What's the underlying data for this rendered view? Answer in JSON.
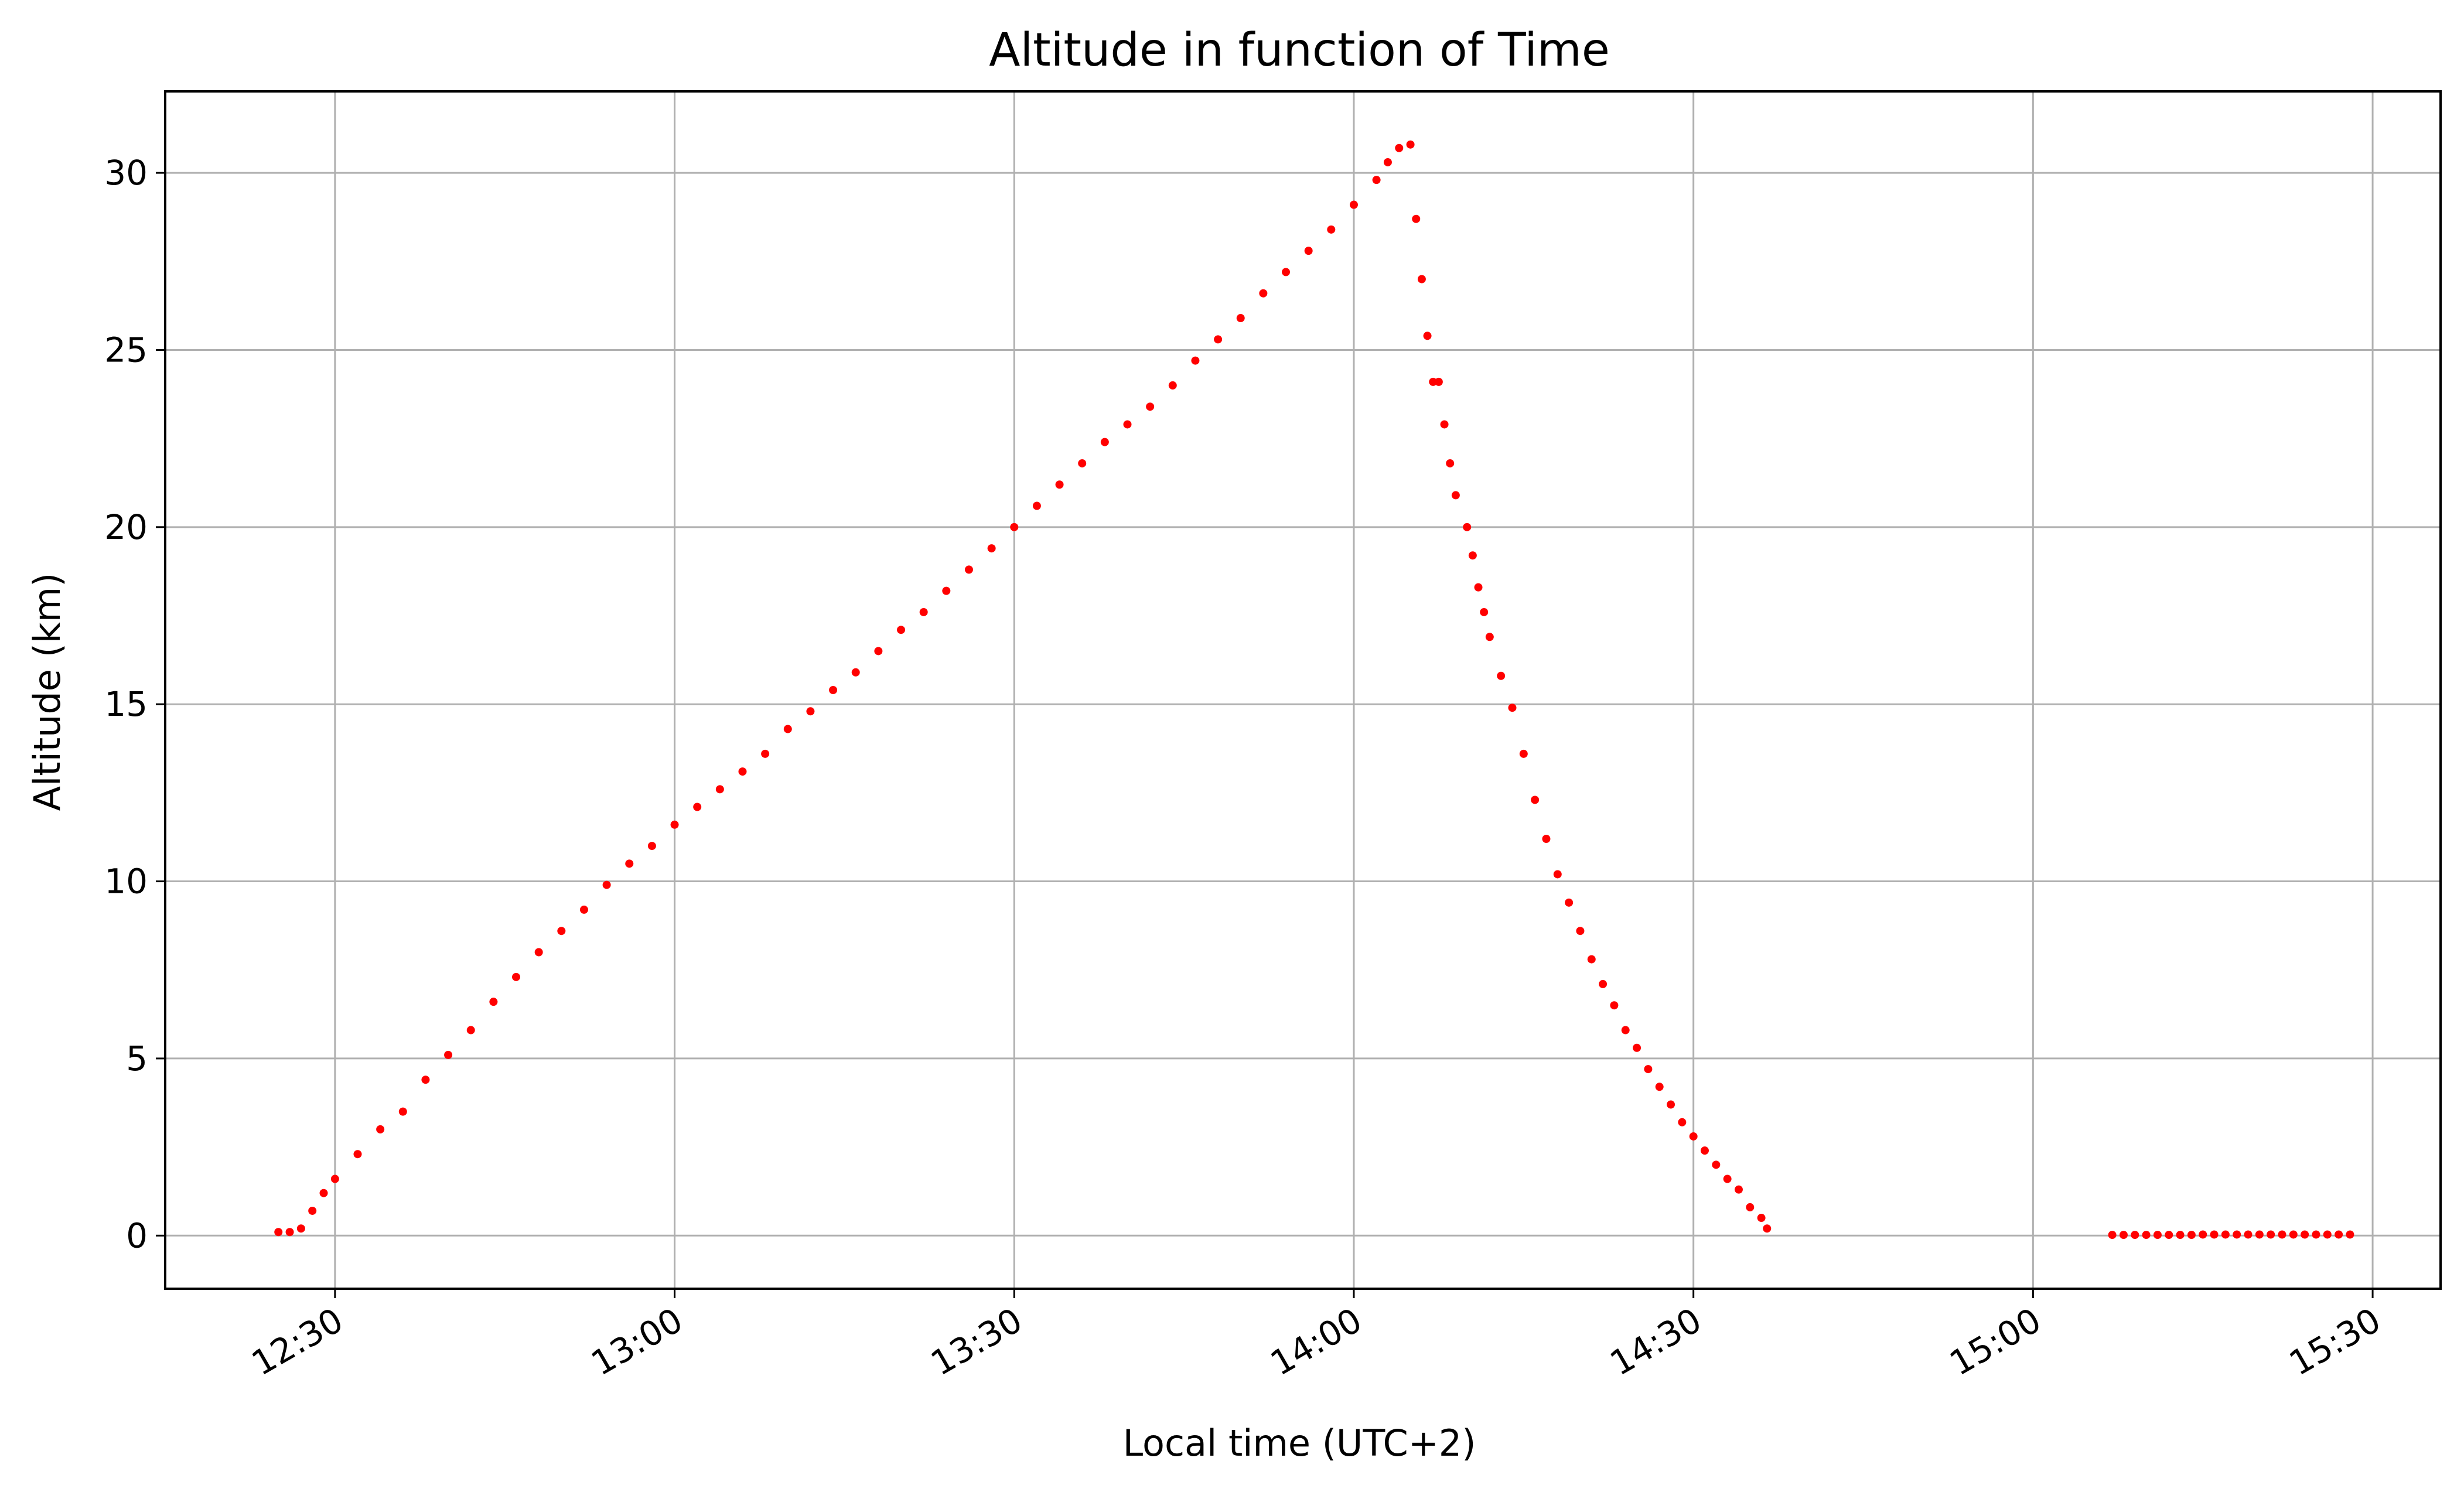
{
  "chart_data": {
    "type": "scatter",
    "title": "Altitude in function of Time",
    "xlabel": "Local time (UTC+2)",
    "ylabel": "Altitude (km)",
    "x_unit": "HH:MM local time",
    "xlim": [
      "12:15",
      "15:36"
    ],
    "ylim": [
      -1.5,
      32.3
    ],
    "x_ticks": [
      "12:30",
      "13:00",
      "13:30",
      "14:00",
      "14:30",
      "15:00",
      "15:30"
    ],
    "y_ticks": [
      0,
      5,
      10,
      15,
      20,
      25,
      30
    ],
    "grid": true,
    "legend": "none",
    "marker_color": "#ff0000",
    "series": [
      {
        "points": [
          [
            "12:25",
            0.1
          ],
          [
            "12:26",
            0.1
          ],
          [
            "12:27",
            0.2
          ],
          [
            "12:28",
            0.7
          ],
          [
            "12:29",
            1.2
          ],
          [
            "12:30",
            1.6
          ],
          [
            "12:32",
            2.3
          ],
          [
            "12:34",
            3.0
          ],
          [
            "12:36",
            3.5
          ],
          [
            "12:38",
            4.4
          ],
          [
            "12:40",
            5.1
          ],
          [
            "12:42",
            5.8
          ],
          [
            "12:44",
            6.6
          ],
          [
            "12:46",
            7.3
          ],
          [
            "12:48",
            8.0
          ],
          [
            "12:50",
            8.6
          ],
          [
            "12:52",
            9.2
          ],
          [
            "12:54",
            9.9
          ],
          [
            "12:56",
            10.5
          ],
          [
            "12:58",
            11.0
          ],
          [
            "13:00",
            11.6
          ],
          [
            "13:02",
            12.1
          ],
          [
            "13:04",
            12.6
          ],
          [
            "13:06",
            13.1
          ],
          [
            "13:08",
            13.6
          ],
          [
            "13:10",
            14.3
          ],
          [
            "13:12",
            14.8
          ],
          [
            "13:14",
            15.4
          ],
          [
            "13:16",
            15.9
          ],
          [
            "13:18",
            16.5
          ],
          [
            "13:20",
            17.1
          ],
          [
            "13:22",
            17.6
          ],
          [
            "13:24",
            18.2
          ],
          [
            "13:26",
            18.8
          ],
          [
            "13:28",
            19.4
          ],
          [
            "13:30",
            20.0
          ],
          [
            "13:32",
            20.6
          ],
          [
            "13:34",
            21.2
          ],
          [
            "13:36",
            21.8
          ],
          [
            "13:38",
            22.4
          ],
          [
            "13:40",
            22.9
          ],
          [
            "13:42",
            23.4
          ],
          [
            "13:44",
            24.0
          ],
          [
            "13:46",
            24.7
          ],
          [
            "13:48",
            25.3
          ],
          [
            "13:50",
            25.9
          ],
          [
            "13:52",
            26.6
          ],
          [
            "13:54",
            27.2
          ],
          [
            "13:56",
            27.8
          ],
          [
            "13:58",
            28.4
          ],
          [
            "14:00",
            29.1
          ],
          [
            "14:02",
            29.8
          ],
          [
            "14:03",
            30.3
          ],
          [
            "14:04",
            30.7
          ],
          [
            "14:05",
            30.8
          ],
          [
            "14:05:30",
            28.7
          ],
          [
            "14:06",
            27.0
          ],
          [
            "14:06:30",
            25.4
          ],
          [
            "14:07",
            24.1
          ],
          [
            "14:07:30",
            24.1
          ],
          [
            "14:08",
            22.9
          ],
          [
            "14:08:30",
            21.8
          ],
          [
            "14:09",
            20.9
          ],
          [
            "14:10",
            20.0
          ],
          [
            "14:10:30",
            19.2
          ],
          [
            "14:11",
            18.3
          ],
          [
            "14:11:30",
            17.6
          ],
          [
            "14:12",
            16.9
          ],
          [
            "14:13",
            15.8
          ],
          [
            "14:14",
            14.9
          ],
          [
            "14:15",
            13.6
          ],
          [
            "14:16",
            12.3
          ],
          [
            "14:17",
            11.2
          ],
          [
            "14:18",
            10.2
          ],
          [
            "14:19",
            9.4
          ],
          [
            "14:20",
            8.6
          ],
          [
            "14:21",
            7.8
          ],
          [
            "14:22",
            7.1
          ],
          [
            "14:23",
            6.5
          ],
          [
            "14:24",
            5.8
          ],
          [
            "14:25",
            5.3
          ],
          [
            "14:26",
            4.7
          ],
          [
            "14:27",
            4.2
          ],
          [
            "14:28",
            3.7
          ],
          [
            "14:29",
            3.2
          ],
          [
            "14:30",
            2.8
          ],
          [
            "14:31",
            2.4
          ],
          [
            "14:32",
            2.0
          ],
          [
            "14:33",
            1.6
          ],
          [
            "14:34",
            1.3
          ],
          [
            "14:35",
            0.8
          ],
          [
            "14:36",
            0.5
          ],
          [
            "14:36:30",
            0.2
          ],
          [
            "15:07",
            0.02
          ],
          [
            "15:08",
            0.02
          ],
          [
            "15:09",
            0.02
          ],
          [
            "15:10",
            0.02
          ],
          [
            "15:11",
            0.02
          ],
          [
            "15:12",
            0.02
          ],
          [
            "15:13",
            0.02
          ],
          [
            "15:14",
            0.02
          ],
          [
            "15:15",
            0.03
          ],
          [
            "15:16",
            0.03
          ],
          [
            "15:17",
            0.03
          ],
          [
            "15:18",
            0.03
          ],
          [
            "15:19",
            0.03
          ],
          [
            "15:20",
            0.03
          ],
          [
            "15:21",
            0.03
          ],
          [
            "15:22",
            0.03
          ],
          [
            "15:23",
            0.03
          ],
          [
            "15:24",
            0.03
          ],
          [
            "15:25",
            0.03
          ],
          [
            "15:26",
            0.03
          ],
          [
            "15:27",
            0.03
          ],
          [
            "15:28",
            0.03
          ]
        ]
      }
    ]
  }
}
